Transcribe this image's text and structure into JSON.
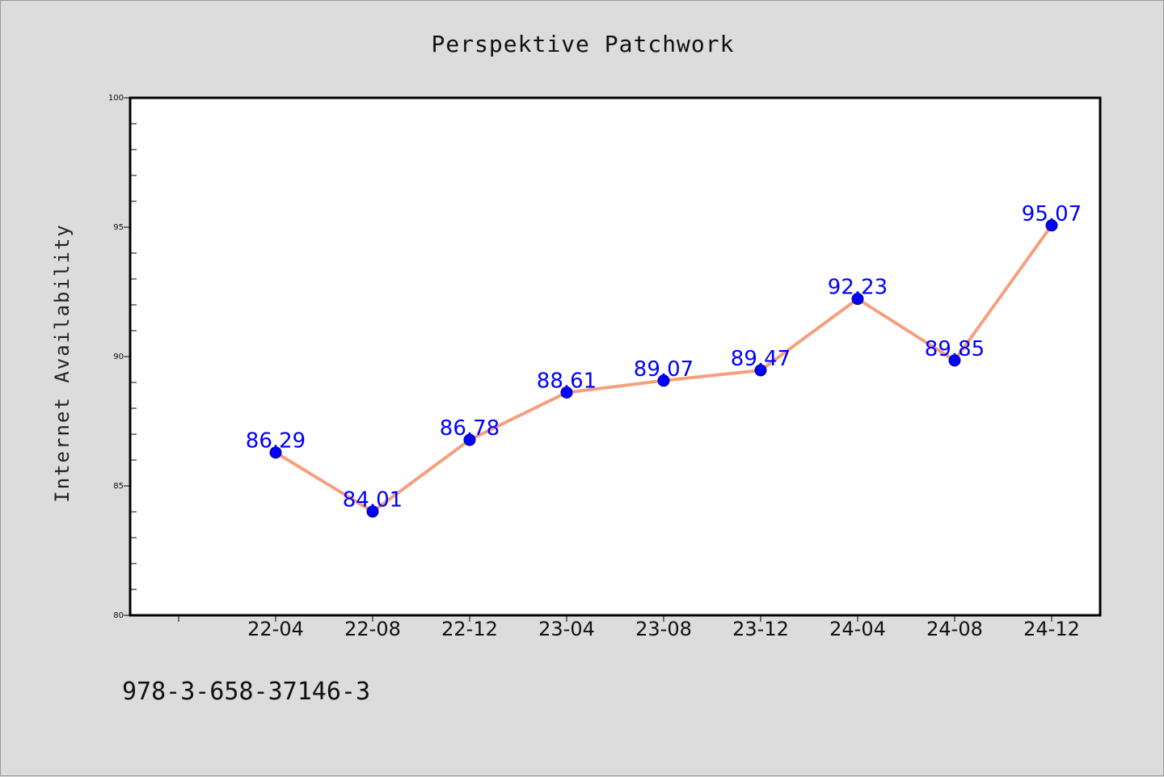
{
  "chart_data": {
    "type": "line",
    "title": "Perspektive Patchwork",
    "xlabel": "",
    "ylabel": "Internet Availability",
    "categories": [
      "22-04",
      "22-08",
      "22-12",
      "23-04",
      "23-08",
      "23-12",
      "24-04",
      "24-08",
      "24-12"
    ],
    "series": [
      {
        "values": [
          86.29,
          84.01,
          86.78,
          88.61,
          89.07,
          89.47,
          92.23,
          89.85,
          95.07
        ],
        "data_labels": [
          "86.29",
          "84.01",
          "86.78",
          "88.61",
          "89.07",
          "89.47",
          "92.23",
          "89.85",
          "95.07"
        ]
      }
    ],
    "ylim": [
      80,
      100
    ],
    "yticks": [
      80,
      85,
      90,
      95,
      100
    ],
    "ytick_labels": [
      "80",
      "85",
      "90",
      "95",
      "100"
    ],
    "grid": false,
    "colors": {
      "line": "#f4a07e",
      "marker": "#0000ff",
      "data_label": "#0000ff",
      "background": "#dcdcdc",
      "plot_area": "#ffffff"
    }
  },
  "footer": {
    "isbn": "978-3-658-37146-3"
  }
}
